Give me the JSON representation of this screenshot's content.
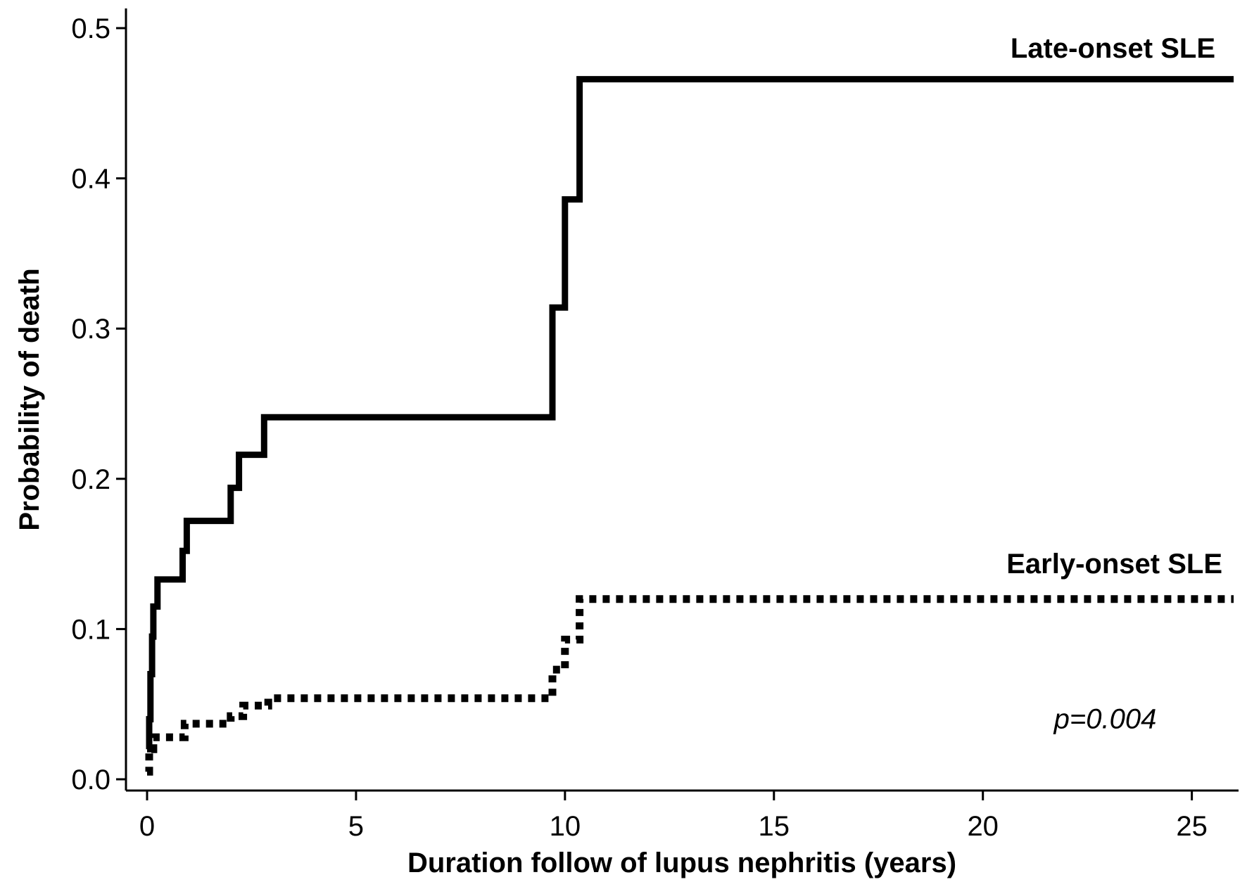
{
  "chart_data": {
    "type": "line",
    "step": true,
    "title": "",
    "xlabel": "Duration follow of lupus nephritis (years)",
    "ylabel": "Probability of death",
    "xlim": [
      -0.5,
      26.5
    ],
    "ylim": [
      -0.015,
      0.515
    ],
    "xticks": [
      0,
      5,
      10,
      15,
      20,
      25
    ],
    "xtick_labels": [
      "0",
      "5",
      "10",
      "15",
      "20",
      "25"
    ],
    "yticks": [
      0.0,
      0.1,
      0.2,
      0.3,
      0.4,
      0.5
    ],
    "ytick_labels": [
      "0.0",
      "0.1",
      "0.2",
      "0.3",
      "0.4",
      "0.5"
    ],
    "grid": false,
    "legend": "none",
    "series": [
      {
        "name": "Late-onset SLE",
        "style": "solid",
        "color": "#000000",
        "x": [
          0.0,
          0.05,
          0.08,
          0.12,
          0.15,
          0.25,
          0.85,
          0.95,
          2.0,
          2.2,
          2.8,
          9.7,
          10.0,
          10.35,
          26.0
        ],
        "y": [
          0.02,
          0.04,
          0.07,
          0.095,
          0.115,
          0.133,
          0.152,
          0.172,
          0.194,
          0.216,
          0.241,
          0.314,
          0.386,
          0.466,
          0.466
        ]
      },
      {
        "name": "Early-onset SLE",
        "style": "dotted",
        "color": "#000000",
        "x": [
          0.0,
          0.05,
          0.15,
          0.9,
          2.0,
          2.3,
          2.9,
          9.7,
          10.0,
          10.35,
          26.0
        ],
        "y": [
          0.005,
          0.02,
          0.028,
          0.037,
          0.042,
          0.049,
          0.054,
          0.073,
          0.093,
          0.12,
          0.12
        ]
      }
    ],
    "series_labels": {
      "late": "Late-onset SLE",
      "early": "Early-onset SLE"
    },
    "annotations": [
      {
        "text": "p=0.004",
        "x": 21.7,
        "y": 0.034
      }
    ]
  }
}
